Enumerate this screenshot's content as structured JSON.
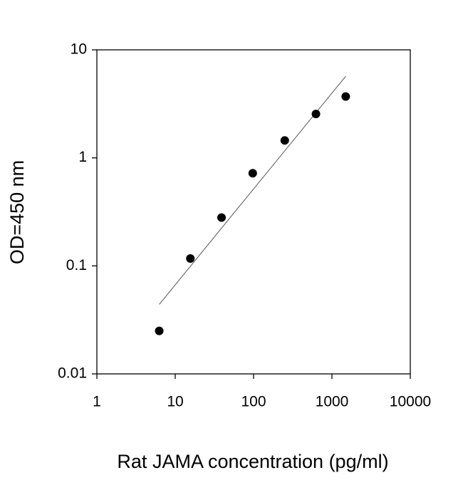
{
  "chart_data": {
    "type": "scatter",
    "xlabel": "Rat JAMA concentration (pg/ml)",
    "ylabel": "OD=450 nm",
    "xscale": "log",
    "yscale": "log",
    "xlim": [
      1,
      10000
    ],
    "ylim": [
      0.01,
      10
    ],
    "xticks": [
      1,
      10,
      100,
      1000,
      10000
    ],
    "yticks": [
      0.01,
      0.1,
      1,
      10
    ],
    "series": [
      {
        "color": "#000000",
        "x": [
          6.25,
          15.6,
          39,
          97.5,
          250,
          625,
          1500
        ],
        "values": [
          0.025,
          0.117,
          0.28,
          0.72,
          1.45,
          2.55,
          3.7
        ]
      }
    ],
    "fit_line": {
      "color": "#555555",
      "x": [
        6.25,
        1500
      ],
      "values": [
        0.044,
        5.7
      ]
    }
  }
}
